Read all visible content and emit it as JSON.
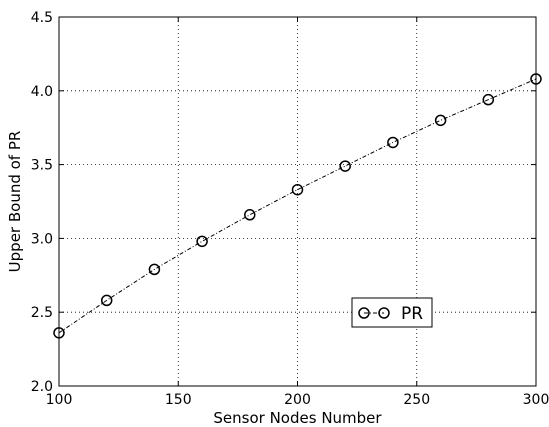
{
  "chart_data": {
    "type": "line",
    "title": "",
    "xlabel": "Sensor Nodes Number",
    "ylabel": "Upper Bound of PR",
    "xlim": [
      100,
      300
    ],
    "ylim": [
      2.0,
      4.5
    ],
    "xticks": [
      100,
      150,
      200,
      250,
      300
    ],
    "yticks": [
      2.0,
      2.5,
      3.0,
      3.5,
      4.0,
      4.5
    ],
    "xtick_labels": [
      "100",
      "150",
      "200",
      "250",
      "300"
    ],
    "ytick_labels": [
      "2.0",
      "2.5",
      "3.0",
      "3.5",
      "4.0",
      "4.5"
    ],
    "grid": true,
    "legend_position": "lower-right",
    "series": [
      {
        "name": "PR",
        "marker": "open-circle",
        "line_style": "dash-dot",
        "color": "#000000",
        "x": [
          100,
          120,
          140,
          160,
          180,
          200,
          220,
          240,
          260,
          280,
          300
        ],
        "y": [
          2.36,
          2.58,
          2.79,
          2.98,
          3.16,
          3.33,
          3.49,
          3.65,
          3.8,
          3.94,
          4.08
        ]
      }
    ]
  }
}
